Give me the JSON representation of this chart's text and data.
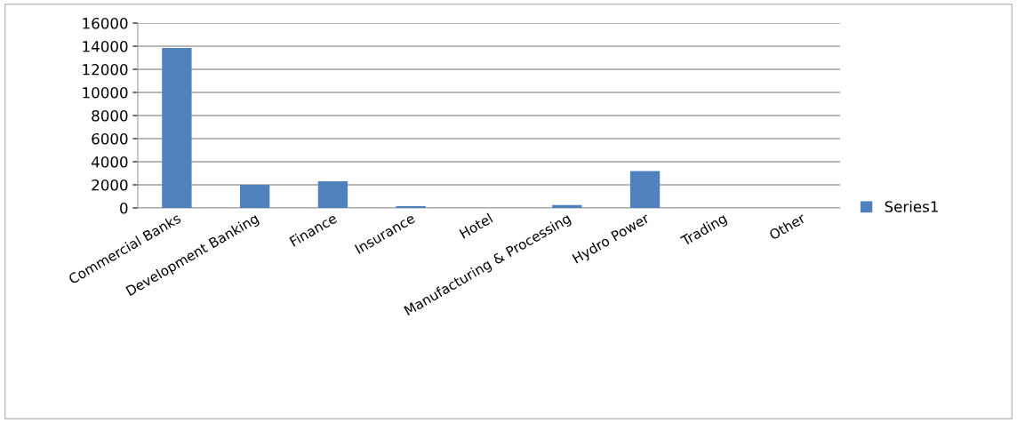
{
  "chart_data": {
    "type": "bar",
    "categories": [
      "Commercial Banks",
      "Development Banking",
      "Finance",
      "Insurance",
      "Hotel",
      "Manufacturing & Processing",
      "Hydro Power",
      "Trading",
      "Other"
    ],
    "series": [
      {
        "name": "Series1",
        "color": "#4f81bd",
        "values": [
          13850,
          2000,
          2300,
          150,
          0,
          250,
          3200,
          0,
          0
        ]
      }
    ],
    "ylim": [
      0,
      16000
    ],
    "yticks": [
      0,
      2000,
      4000,
      6000,
      8000,
      10000,
      12000,
      14000,
      16000
    ],
    "grid": "y",
    "legend": "right"
  }
}
